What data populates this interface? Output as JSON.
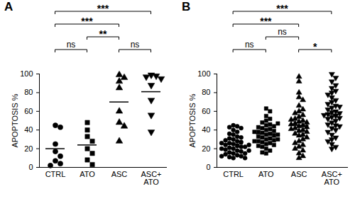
{
  "chart_data": [
    {
      "type": "scatter",
      "title": "A",
      "ylabel": "APOPTOSIS %",
      "ylim": [
        0,
        100
      ],
      "yticks": [
        0,
        20,
        40,
        60,
        80,
        100
      ],
      "series": [
        {
          "name": "CTRL",
          "color": "#000000",
          "marker": "circle",
          "mean": 20,
          "values": [
            45,
            43,
            25,
            17,
            12,
            7,
            4,
            2
          ]
        },
        {
          "name": "ATO",
          "color": "#000000",
          "marker": "square",
          "mean": 24,
          "values": [
            48,
            40,
            33,
            28,
            20,
            15,
            8,
            3
          ]
        },
        {
          "name": "ASC",
          "color": "#000000",
          "marker": "triangle",
          "mean": 70,
          "values": [
            99,
            96,
            92,
            85,
            60,
            48,
            44,
            28
          ]
        },
        {
          "name": "ASC+ATO",
          "color": "#000000",
          "marker": "triangle-down",
          "mean": 81,
          "values": [
            99,
            98,
            97,
            95,
            88,
            72,
            56,
            38
          ]
        }
      ],
      "comparisons": [
        {
          "from": "CTRL",
          "to": "ATO",
          "label": "ns"
        },
        {
          "from": "ATO",
          "to": "ASC",
          "label": "**"
        },
        {
          "from": "ASC",
          "to": "ASC+ATO",
          "label": "ns"
        },
        {
          "from": "CTRL",
          "to": "ASC",
          "label": "***"
        },
        {
          "from": "CTRL",
          "to": "ASC+ATO",
          "label": "***"
        }
      ]
    },
    {
      "type": "scatter",
      "title": "B",
      "ylabel": "APOPTOSIS %",
      "ylim": [
        0,
        100
      ],
      "yticks": [
        0,
        20,
        40,
        60,
        80,
        100
      ],
      "series": [
        {
          "name": "CTRL",
          "color": "#000000",
          "marker": "circle",
          "mean": 25,
          "values": [
            45,
            44,
            43,
            42,
            40,
            38,
            36,
            35,
            33,
            32,
            31,
            30,
            29,
            28,
            27,
            26,
            25,
            24,
            23,
            22,
            22,
            21,
            20,
            19,
            18,
            17,
            16,
            15,
            15,
            14,
            13,
            12,
            12,
            11,
            10,
            10,
            20,
            26,
            24,
            18
          ]
        },
        {
          "name": "ATO",
          "color": "#000000",
          "marker": "square",
          "mean": 36,
          "values": [
            63,
            60,
            55,
            52,
            50,
            48,
            46,
            45,
            44,
            42,
            41,
            40,
            39,
            38,
            37,
            36,
            35,
            34,
            33,
            32,
            31,
            30,
            30,
            29,
            28,
            27,
            26,
            25,
            24,
            23,
            22,
            20,
            18,
            16,
            15,
            35,
            38,
            43,
            47,
            28
          ]
        },
        {
          "name": "ASC",
          "color": "#000000",
          "marker": "triangle",
          "mean": 45,
          "values": [
            97,
            92,
            80,
            75,
            72,
            66,
            62,
            60,
            58,
            56,
            54,
            52,
            50,
            49,
            48,
            47,
            46,
            45,
            44,
            43,
            42,
            41,
            40,
            39,
            38,
            36,
            35,
            34,
            32,
            30,
            28,
            26,
            24,
            22,
            20,
            18,
            15,
            12,
            10,
            51
          ]
        },
        {
          "name": "ASC+ATO",
          "color": "#000000",
          "marker": "triangle-down",
          "mean": 57,
          "values": [
            100,
            96,
            92,
            88,
            85,
            82,
            80,
            78,
            75,
            72,
            70,
            68,
            66,
            64,
            62,
            60,
            59,
            58,
            57,
            56,
            55,
            54,
            53,
            52,
            50,
            48,
            46,
            45,
            44,
            42,
            40,
            38,
            35,
            32,
            30,
            28,
            25,
            22,
            20,
            65
          ]
        }
      ],
      "comparisons": [
        {
          "from": "CTRL",
          "to": "ATO",
          "label": "ns"
        },
        {
          "from": "ATO",
          "to": "ASC",
          "label": "ns"
        },
        {
          "from": "ASC",
          "to": "ASC+ATO",
          "label": "*"
        },
        {
          "from": "CTRL",
          "to": "ASC",
          "label": "***"
        },
        {
          "from": "CTRL",
          "to": "ASC+ATO",
          "label": "***"
        }
      ]
    }
  ]
}
